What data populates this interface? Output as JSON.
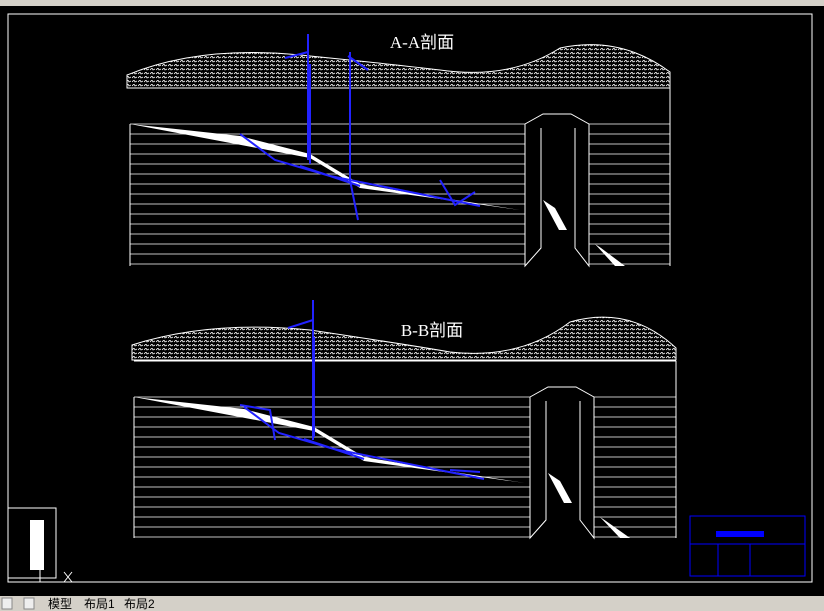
{
  "drawing": {
    "sections": [
      {
        "title": "A-A剖面"
      },
      {
        "title": "B-B剖面"
      }
    ]
  },
  "tabs": [
    "模型",
    "布局1",
    "布局2"
  ]
}
